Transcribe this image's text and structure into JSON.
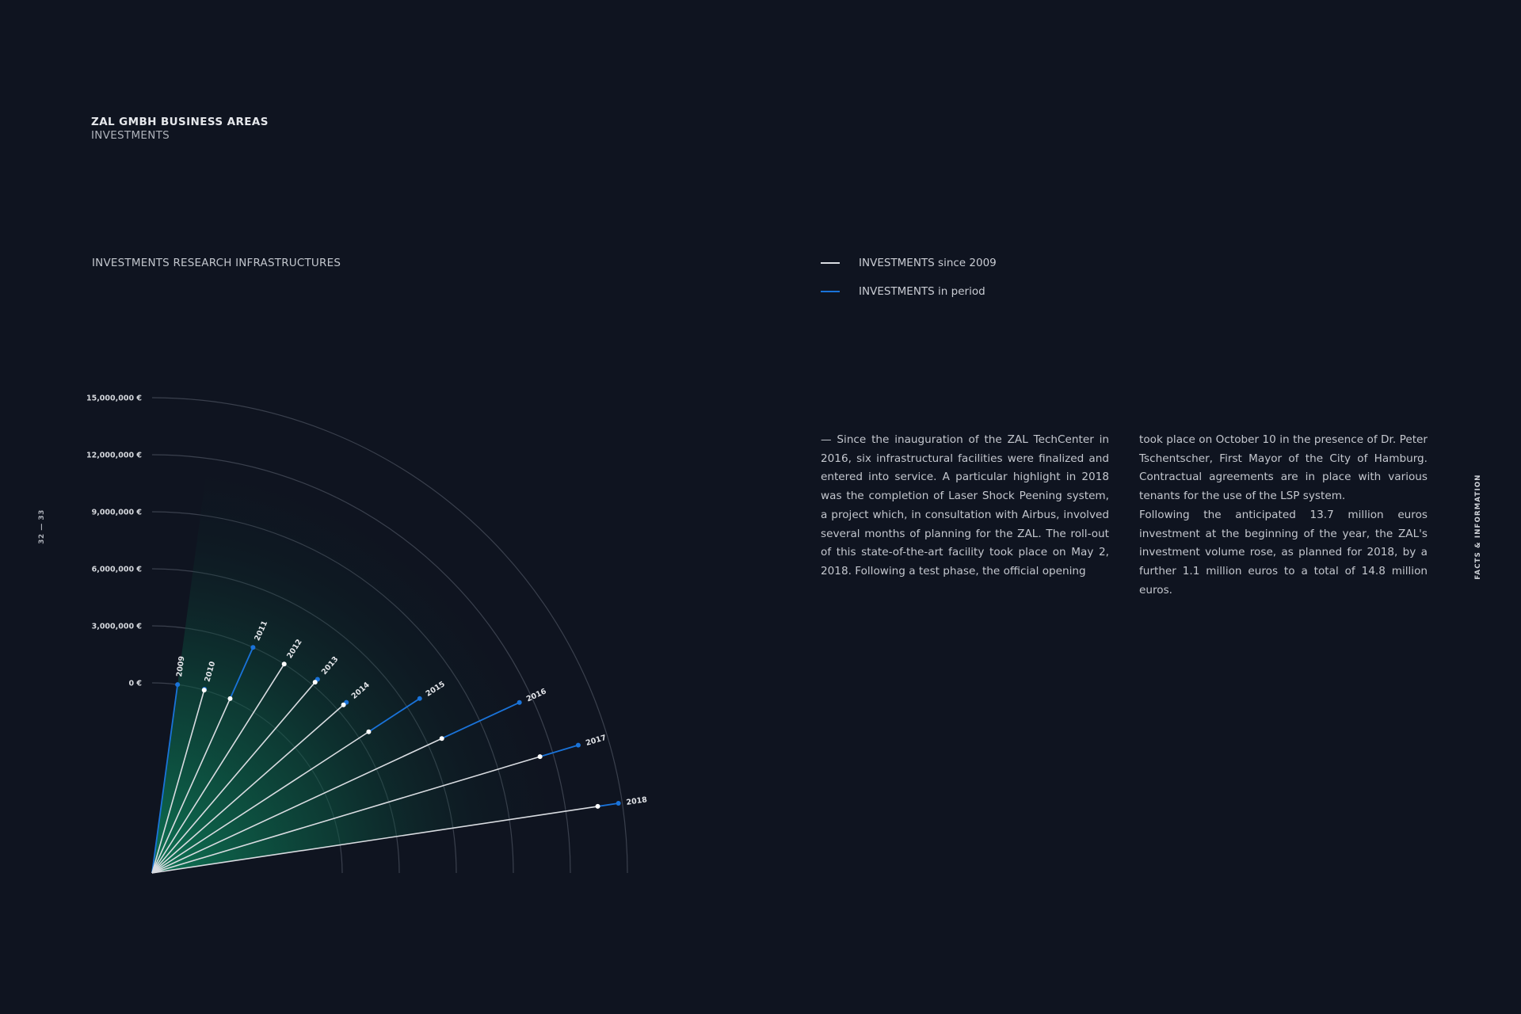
{
  "header": {
    "title": "ZAL GMBH BUSINESS AREAS",
    "subtitle": "INVESTMENTS"
  },
  "side_label": "FACTS & INFORMATION",
  "page_numbers": {
    "left": "32",
    "separator": "—",
    "right": "33"
  },
  "legend": [
    {
      "label": "INVESTMENTS since 2009",
      "color": "#d9dce1"
    },
    {
      "label": "INVESTMENTS in period",
      "color": "#1a73d9"
    }
  ],
  "text": {
    "col1": "— Since the inauguration of the ZAL TechCenter in 2016, six infrastructural facilities were finalized and entered into service. A particular highlight in 2018 was the completion of Laser Shock Peening system, a project which, in consultation with Airbus, involved several months of planning for the ZAL. The roll-out of this state-of-the-art facility took place on May 2, 2018. Following a test phase, the official opening",
    "col2a": "took place on October 10 in the presence of Dr. Peter Tschentscher, First Mayor of the City of Hamburg. Contractual agreements are in place with various tenants for the use of the LSP system.",
    "col2b": "Following the anticipated 13.7 million euros investment at the beginning of the year, the ZAL's investment volume rose, as planned for 2018, by a further 1.1 million euros to a total of 14.8 million euros."
  },
  "chart_data": {
    "type": "radial-bar",
    "title": "INVESTMENTS RESEARCH INFRASTRUCTURES",
    "unit": "€",
    "radial_ticks": [
      0,
      3000000,
      6000000,
      9000000,
      12000000,
      15000000
    ],
    "radial_tick_labels": [
      "0 €",
      "3,000,000 €",
      "6,000,000 €",
      "9,000,000 €",
      "12,000,000 €",
      "15,000,000 €"
    ],
    "rlim": [
      0,
      15000000
    ],
    "categories": [
      "2009",
      "2010",
      "2011",
      "2012",
      "2013",
      "2014",
      "2015",
      "2016",
      "2017",
      "2018"
    ],
    "series": [
      {
        "name": "INVESTMENTS since 2009",
        "color": "#d9dce1",
        "values": [
          0,
          0,
          50000,
          3000000,
          3200000,
          3400000,
          3600000,
          6800000,
          11300000,
          13700000
        ]
      },
      {
        "name": "INVESTMENTS in period",
        "color": "#1a73d9",
        "values": [
          0,
          50000,
          2950000,
          0,
          200000,
          200000,
          3200000,
          4500000,
          2100000,
          1100000
        ]
      }
    ],
    "fill_color": "#0d7a57",
    "grid": true
  }
}
